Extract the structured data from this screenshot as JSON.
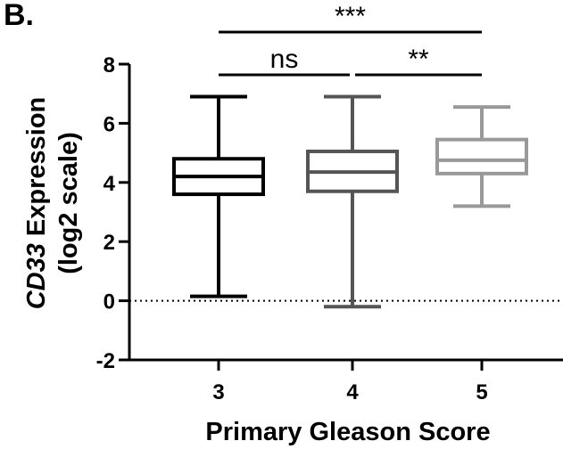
{
  "panel_label": "B.",
  "chart_data": {
    "type": "box",
    "xlabel": "Primary Gleason Score",
    "ylabel_line1": "CD33 Expression",
    "ylabel_line2": "(log2 scale)",
    "ylim": [
      -2,
      8
    ],
    "yticks": [
      "8",
      "6",
      "4",
      "2",
      "0",
      "-2"
    ],
    "ytick_values": [
      8,
      6,
      4,
      2,
      0,
      -2
    ],
    "reference_line_y": 0,
    "reference_line_style": "dotted",
    "categories": [
      "3",
      "4",
      "5"
    ],
    "boxes": [
      {
        "category": "3",
        "min": 0.15,
        "q1": 3.6,
        "median": 4.2,
        "q3": 4.8,
        "max": 6.9,
        "color": "#000000"
      },
      {
        "category": "4",
        "min": -0.2,
        "q1": 3.7,
        "median": 4.35,
        "q3": 5.05,
        "max": 6.9,
        "color": "#555555"
      },
      {
        "category": "5",
        "min": 3.2,
        "q1": 4.3,
        "median": 4.75,
        "q3": 5.45,
        "max": 6.55,
        "color": "#999999"
      }
    ],
    "significance": [
      {
        "from": "3",
        "to": "4",
        "label": "ns",
        "level": 1
      },
      {
        "from": "4",
        "to": "5",
        "label": "**",
        "level": 1
      },
      {
        "from": "3",
        "to": "5",
        "label": "***",
        "level": 2
      }
    ]
  }
}
